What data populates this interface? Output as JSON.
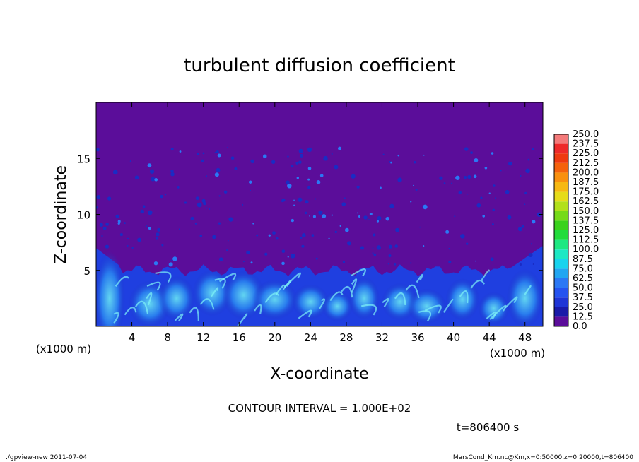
{
  "chart_data": {
    "type": "heatmap",
    "title": "turbulent diffusion coefficient",
    "xlabel": "X-coordinate",
    "ylabel": "Z-coordinate",
    "x_unit_left": "(x1000 m)",
    "x_unit_right": "(x1000 m)",
    "xlim": [
      0,
      50
    ],
    "ylim": [
      0,
      20
    ],
    "x_ticks": [
      4,
      8,
      12,
      16,
      20,
      24,
      28,
      32,
      36,
      40,
      44,
      48
    ],
    "y_ticks": [
      5,
      10,
      15
    ],
    "colorbar": {
      "levels": [
        "0.0",
        "12.5",
        "25.0",
        "37.5",
        "50.0",
        "62.5",
        "75.0",
        "87.5",
        "100.0",
        "112.5",
        "125.0",
        "137.5",
        "150.0",
        "162.5",
        "175.0",
        "187.5",
        "200.0",
        "212.5",
        "225.0",
        "237.5",
        "250.0"
      ],
      "colors": [
        "#5b0d9a",
        "#1a1aa8",
        "#1f35d6",
        "#2553f0",
        "#2b78f5",
        "#22a6f2",
        "#18d3ee",
        "#1ce8c4",
        "#1ee882",
        "#22dc3c",
        "#3ad21c",
        "#76da18",
        "#b2e01a",
        "#e6dc1a",
        "#f6b812",
        "#f8900e",
        "#f4620c",
        "#ee3a10",
        "#ee2a2a",
        "#f47a7a"
      ]
    },
    "boundary_layer_top_km": 5,
    "background_value": 0.0
  },
  "contour_interval_text": "CONTOUR INTERVAL = 1.000E+02",
  "time_text": "t=806400 s",
  "footer_left": "./gpview-new  2011-07-04",
  "footer_right": "MarsCond_Km.nc@Km,x=0:50000,z=0:20000,t=806400",
  "colors": {
    "background_field": "#5b0d9a"
  }
}
